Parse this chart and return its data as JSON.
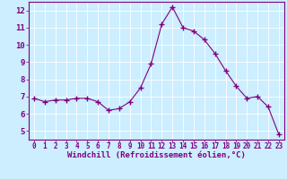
{
  "x": [
    0,
    1,
    2,
    3,
    4,
    5,
    6,
    7,
    8,
    9,
    10,
    11,
    12,
    13,
    14,
    15,
    16,
    17,
    18,
    19,
    20,
    21,
    22,
    23
  ],
  "y": [
    6.9,
    6.7,
    6.8,
    6.8,
    6.9,
    6.9,
    6.7,
    6.2,
    6.3,
    6.7,
    7.5,
    8.9,
    11.2,
    12.2,
    11.0,
    10.8,
    10.3,
    9.5,
    8.5,
    7.6,
    6.9,
    7.0,
    6.4,
    4.8
  ],
  "line_color": "#800080",
  "marker": "+",
  "marker_size": 4,
  "marker_color": "#800080",
  "bg_color": "#cceeff",
  "plot_bg_color": "#cceeff",
  "grid_color": "#ffffff",
  "xlabel": "Windchill (Refroidissement éolien,°C)",
  "xlabel_color": "#800080",
  "tick_color": "#800080",
  "spine_color": "#800080",
  "bottom_bar_color": "#800080",
  "ylim": [
    4.5,
    12.5
  ],
  "xlim": [
    -0.5,
    23.5
  ],
  "yticks": [
    5,
    6,
    7,
    8,
    9,
    10,
    11,
    12
  ],
  "xticks": [
    0,
    1,
    2,
    3,
    4,
    5,
    6,
    7,
    8,
    9,
    10,
    11,
    12,
    13,
    14,
    15,
    16,
    17,
    18,
    19,
    20,
    21,
    22,
    23
  ],
  "font_family": "monospace",
  "xtick_fontsize": 5.5,
  "ytick_fontsize": 6.5,
  "xlabel_fontsize": 6.5
}
